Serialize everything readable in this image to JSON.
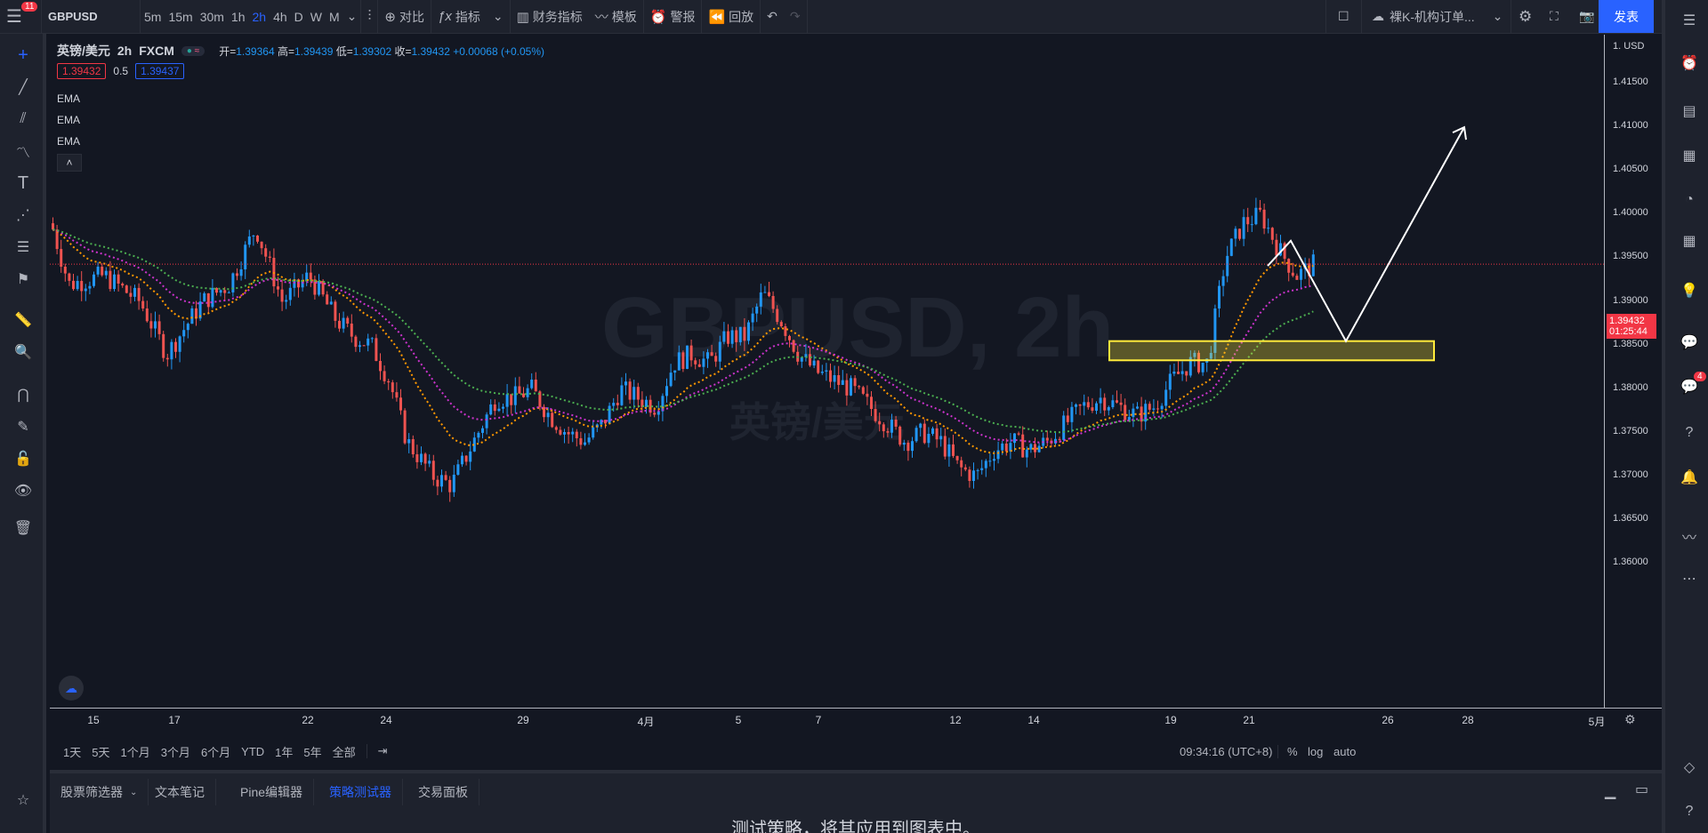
{
  "topbar": {
    "notifications_badge": "11",
    "symbol": "GBPUSD",
    "intervals": [
      "5m",
      "15m",
      "30m",
      "1h",
      "2h",
      "4h",
      "D",
      "W",
      "M"
    ],
    "active_interval": "2h",
    "compare_label": "对比",
    "indicators_label": "指标",
    "financials_label": "财务指标",
    "templates_label": "模板",
    "alert_label": "警报",
    "replay_label": "回放",
    "layout_name": "裸K-机构订单...",
    "publish_label": "发表"
  },
  "legend": {
    "pair_name": "英镑/美元",
    "interval": "2h",
    "source": "FXCM",
    "open_label": "开=",
    "open": "1.39364",
    "high_label": "高=",
    "high": "1.39439",
    "low_label": "低=",
    "low": "1.39302",
    "close_label": "收=",
    "close": "1.39432",
    "change": "+0.00068 (+0.05%)",
    "bid": "1.39432",
    "spread": "0.5",
    "ask": "1.39437",
    "ema_labels": [
      "EMA",
      "EMA",
      "EMA"
    ]
  },
  "watermark": {
    "main": "GBPUSD, 2h",
    "sub": "英镑/美元"
  },
  "price_axis": {
    "currency": "USD",
    "ticks": [
      "1.41500",
      "1.41000",
      "1.40500",
      "1.40000",
      "1.39500",
      "1.39000",
      "1.38500",
      "1.38000",
      "1.37500",
      "1.37000",
      "1.36500",
      "1.36000"
    ],
    "current_price": "1.39432",
    "countdown": "01:25:44"
  },
  "time_axis": {
    "ticks": [
      "15",
      "17",
      "22",
      "24",
      "29",
      "4月",
      "5",
      "7",
      "12",
      "14",
      "19",
      "21",
      "26",
      "28",
      "5月"
    ]
  },
  "range_bar": {
    "ranges": [
      "1天",
      "5天",
      "1个月",
      "3个月",
      "6个月",
      "YTD",
      "1年",
      "5年",
      "全部"
    ],
    "clock": "09:34:16 (UTC+8)",
    "percent": "%",
    "log": "log",
    "auto": "auto"
  },
  "bottom_panel": {
    "tabs": [
      "股票筛选器",
      "文本笔记",
      "Pine编辑器",
      "策略测试器",
      "交易面板"
    ],
    "active_tab": "策略测试器",
    "message": "测试策略，将其应用到图表中。"
  },
  "right_sidebar": {
    "ideas_badge": "4"
  },
  "colors": {
    "up": "#2196f3",
    "down": "#ef5350",
    "ema_fast": "#ff9800",
    "ema_mid": "#cc33cc",
    "ema_slow": "#4caf50",
    "accent": "#2962ff",
    "zone_border": "#ffeb3b",
    "price_label": "#f23645"
  }
}
